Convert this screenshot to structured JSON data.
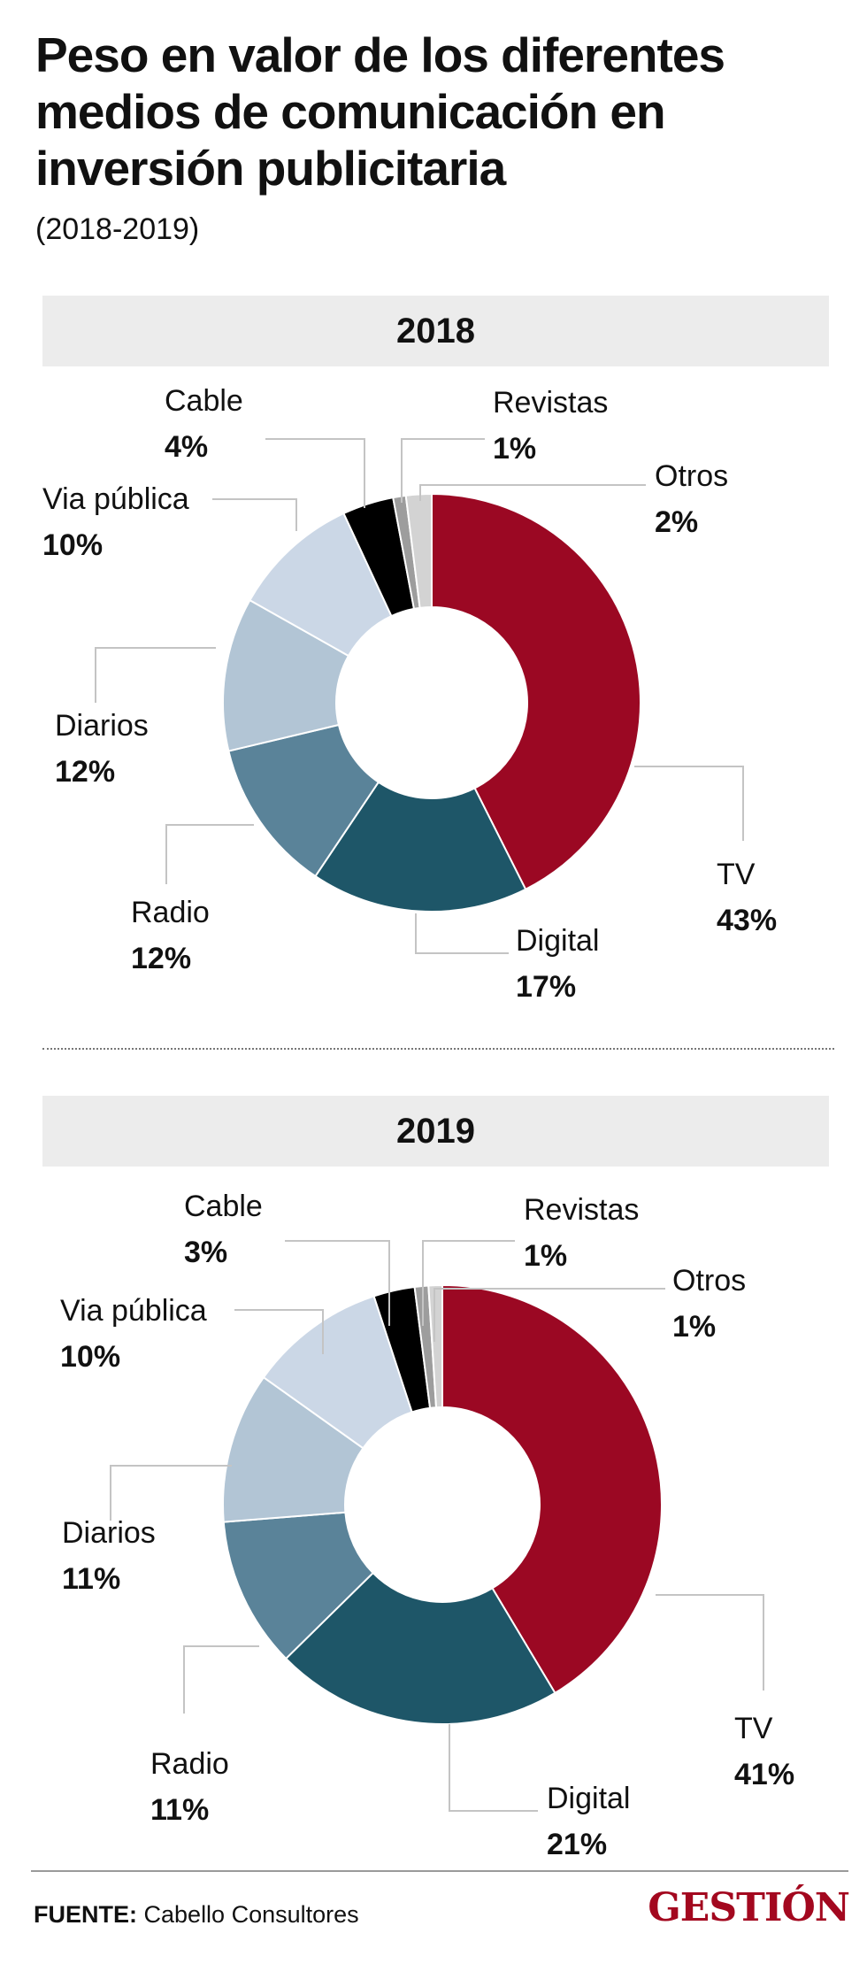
{
  "title": "Peso  en valor de los diferentes medios de comunicación en inversión publicitaria",
  "subtitle": "(2018-2019)",
  "chart_data": [
    {
      "type": "pie",
      "year": "2018",
      "categories": [
        "TV",
        "Digital",
        "Radio",
        "Diarios",
        "Via pública",
        "Cable",
        "Revistas",
        "Otros"
      ],
      "values": [
        43,
        17,
        12,
        12,
        10,
        4,
        1,
        2
      ],
      "labels": [
        "43%",
        "17%",
        "12%",
        "12%",
        "10%",
        "4%",
        "1%",
        "2%"
      ],
      "colors": [
        "#9b0823",
        "#1e5668",
        "#5a8399",
        "#b2c5d5",
        "#cbd7e6",
        "#000000",
        "#9d9d9d",
        "#d3d3d3"
      ]
    },
    {
      "type": "pie",
      "year": "2019",
      "categories": [
        "TV",
        "Digital",
        "Radio",
        "Diarios",
        "Via pública",
        "Cable",
        "Revistas",
        "Otros"
      ],
      "values": [
        41,
        21,
        11,
        11,
        10,
        3,
        1,
        1
      ],
      "labels": [
        "41%",
        "21%",
        "11%",
        "11%",
        "10%",
        "3%",
        "1%",
        "1%"
      ],
      "colors": [
        "#9b0823",
        "#1e5668",
        "#5a8399",
        "#b2c5d5",
        "#cbd7e6",
        "#000000",
        "#9d9d9d",
        "#d3d3d3"
      ]
    }
  ],
  "footer": {
    "source_label": "FUENTE:",
    "source_text": "Cabello Consultores",
    "logo": "GESTIÓN"
  }
}
